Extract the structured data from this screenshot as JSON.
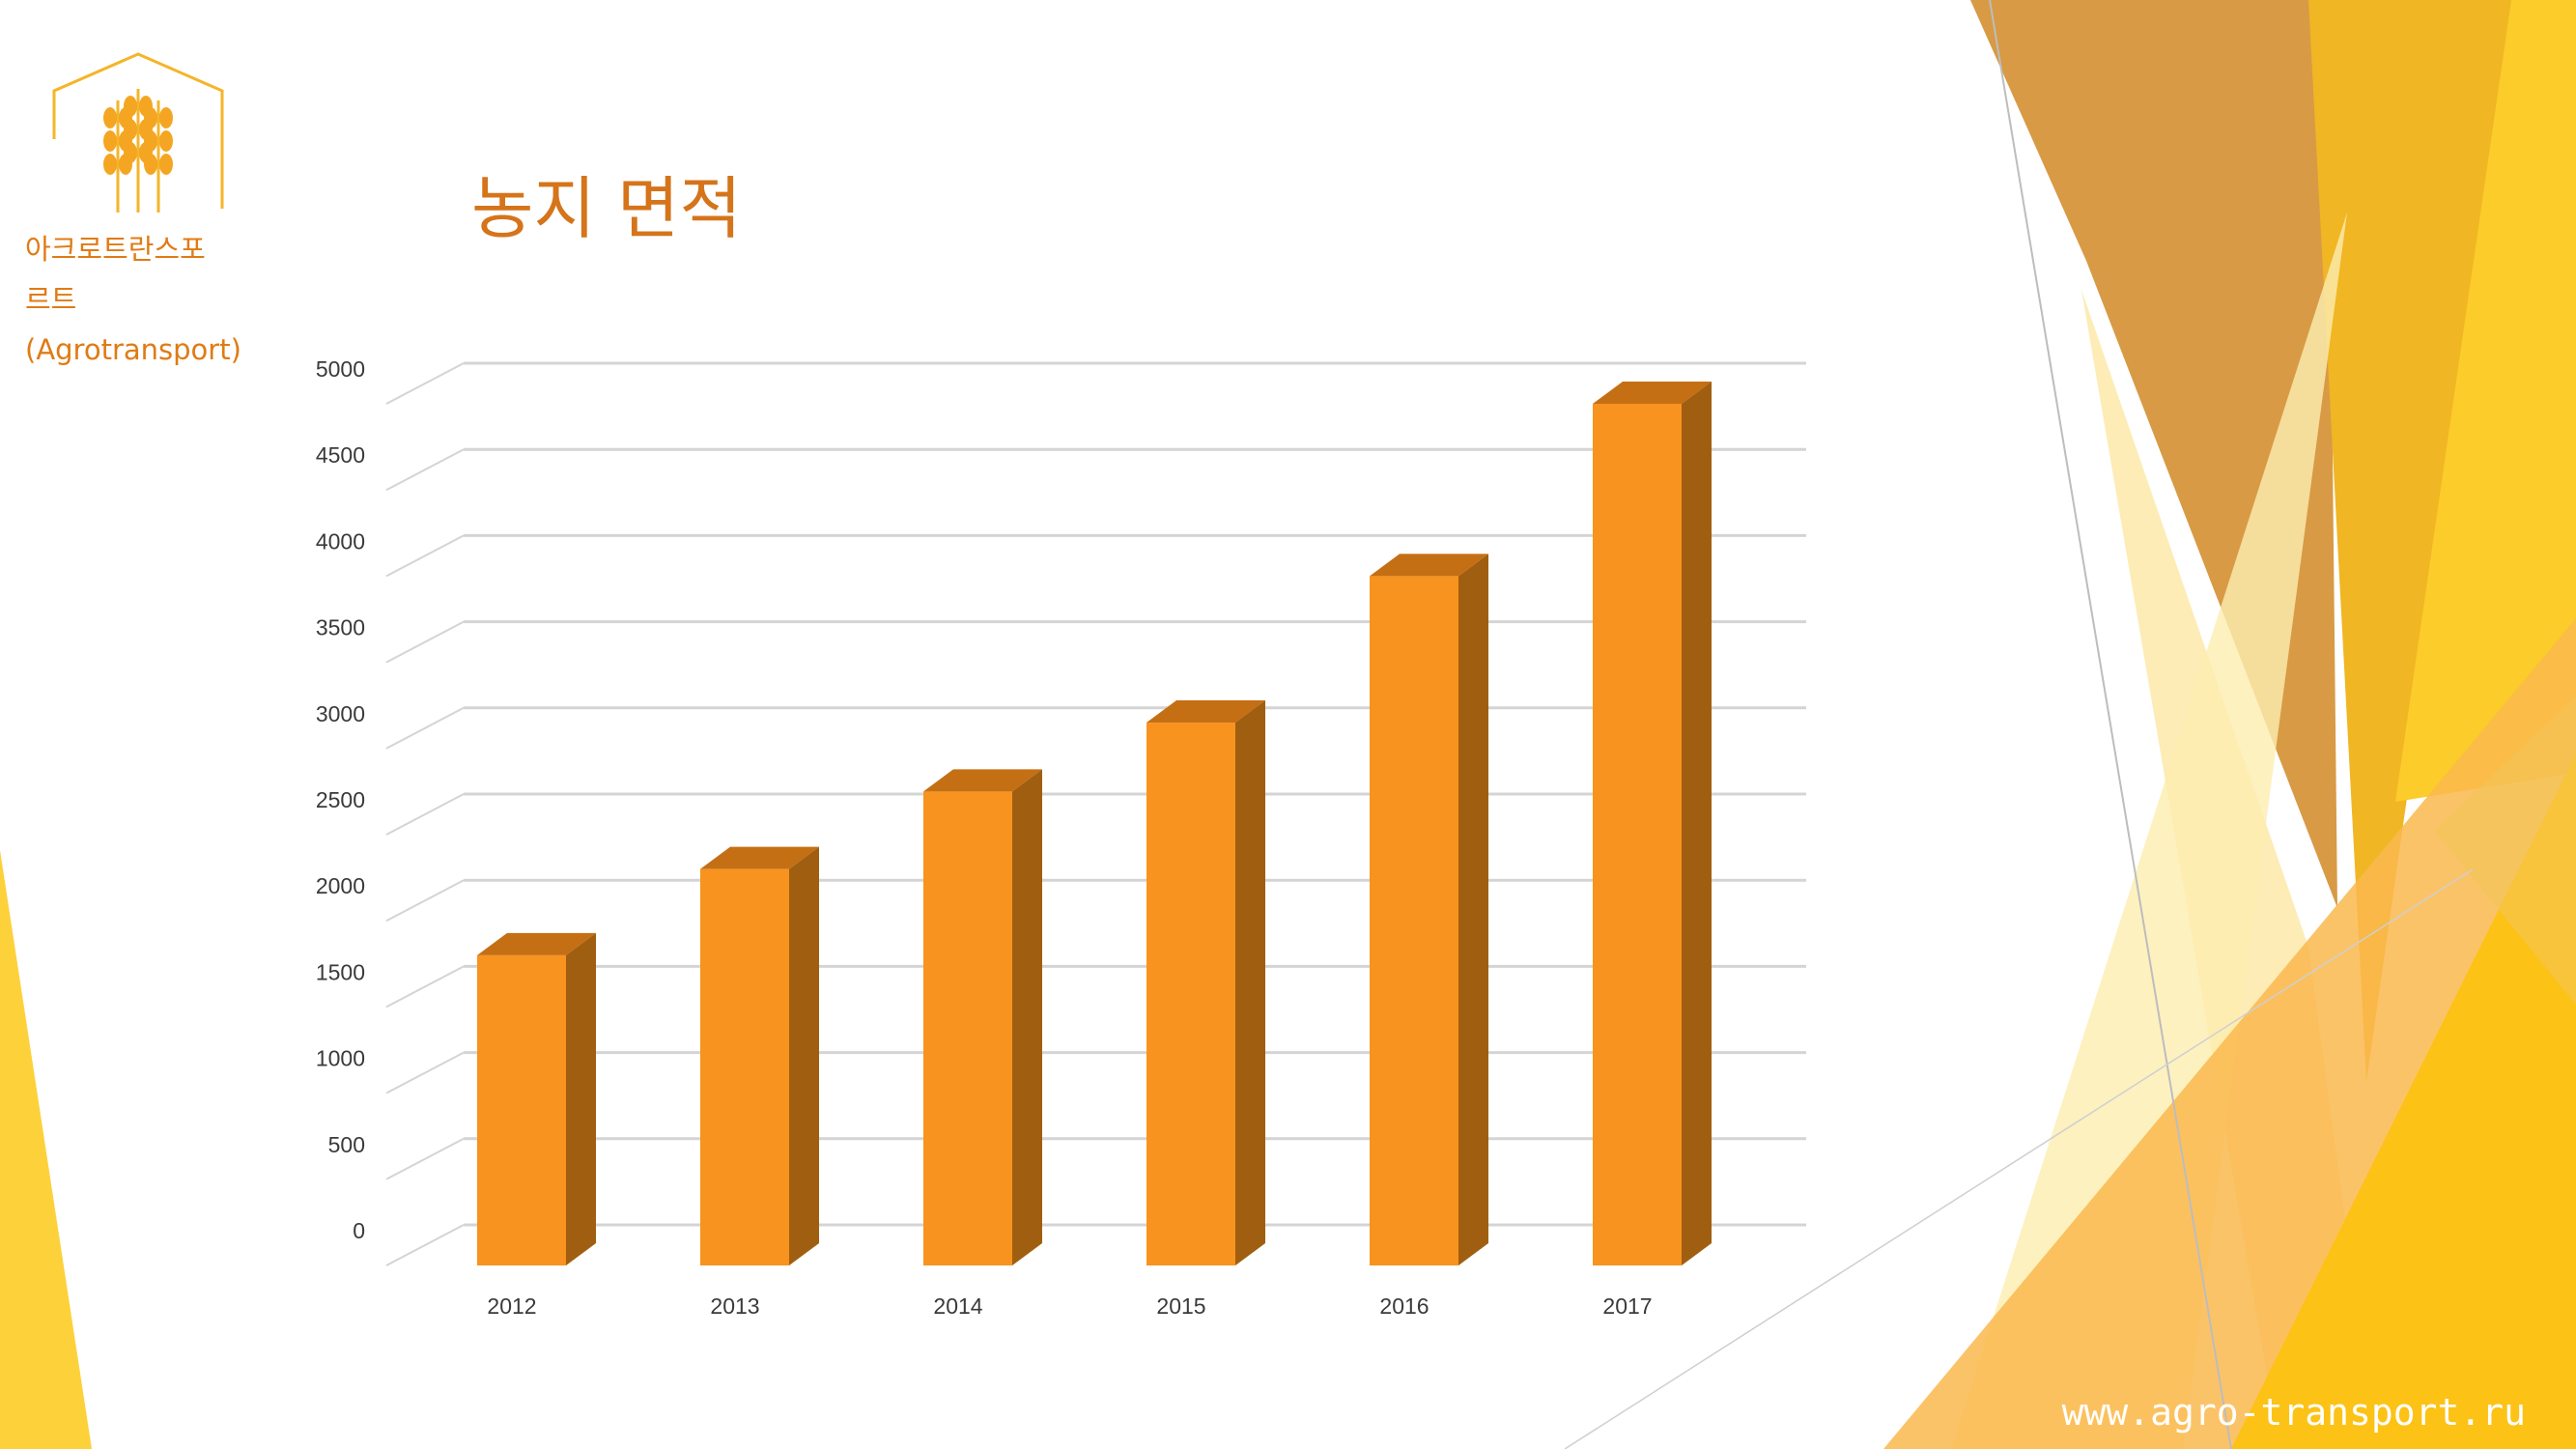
{
  "brand": {
    "name_line1": "아크로트란스포",
    "name_line2": "르트",
    "name_line3": "(Agrotransport)",
    "logo_icon": "wheat-house-icon"
  },
  "title": "농지 면적",
  "website": "www.agro-transport.ru",
  "colors": {
    "accent": "#e07b14",
    "bar_front": "#f7931e",
    "bar_top": "#c56f15",
    "bar_side": "#a05f10",
    "gridline": "#d4d4d4",
    "decor_yellow": "#fbc314",
    "decor_orange": "#d5871e"
  },
  "chart_data": {
    "type": "bar",
    "style": "3d-column",
    "categories": [
      "2012",
      "2013",
      "2014",
      "2015",
      "2016",
      "2017"
    ],
    "values": [
      1800,
      2300,
      2750,
      3150,
      4000,
      5000
    ],
    "ylim": [
      0,
      5000
    ],
    "yticks": [
      0,
      500,
      1000,
      1500,
      2000,
      2500,
      3000,
      3500,
      4000,
      4500,
      5000
    ],
    "xlabel": "",
    "ylabel": "",
    "grid": true,
    "legend": "none"
  }
}
